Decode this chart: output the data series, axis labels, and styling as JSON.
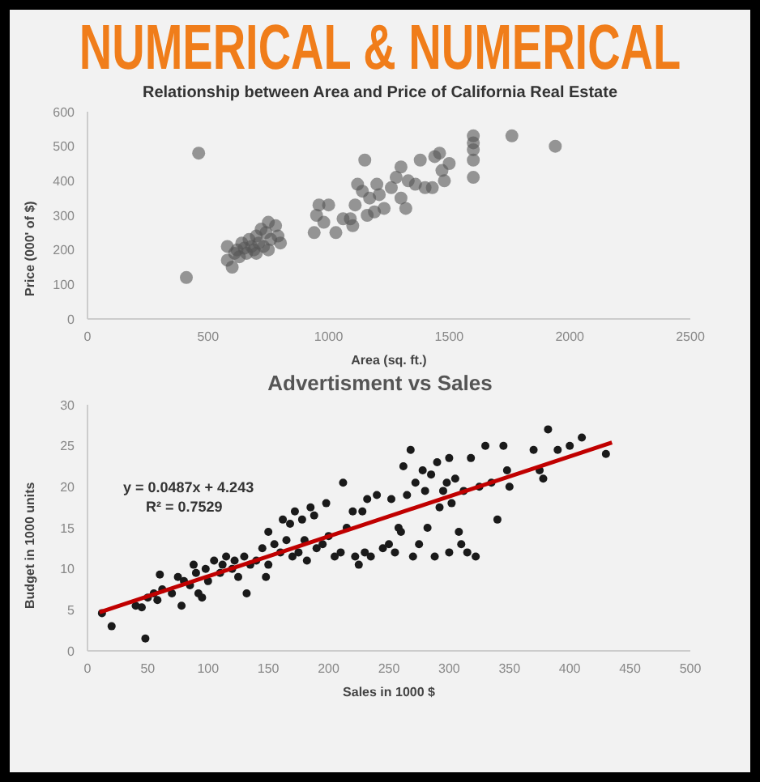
{
  "chart_data": [
    {
      "type": "scatter",
      "title": "NUMERICAL & NUMERICAL",
      "subtitle": "Relationship between Area and Price of California Real Estate",
      "xlabel": "Area (sq. ft.)",
      "ylabel": "Price (000' of $)",
      "marker": "circle",
      "xlim": [
        0,
        2500
      ],
      "xticks": [
        0,
        500,
        1000,
        1500,
        2000,
        2500
      ],
      "ylim": [
        0,
        600
      ],
      "yticks": [
        0,
        100,
        200,
        300,
        400,
        500,
        600
      ],
      "series": [
        {
          "type": "scatter",
          "color": "#555555",
          "x": [
            410,
            461,
            580,
            580,
            600,
            610,
            620,
            630,
            640,
            650,
            660,
            670,
            680,
            690,
            700,
            700,
            710,
            720,
            730,
            740,
            750,
            750,
            760,
            780,
            790,
            800,
            940,
            950,
            960,
            980,
            1000,
            1030,
            1060,
            1090,
            1100,
            1110,
            1120,
            1140,
            1150,
            1160,
            1170,
            1190,
            1200,
            1210,
            1230,
            1260,
            1280,
            1300,
            1300,
            1320,
            1330,
            1360,
            1380,
            1400,
            1430,
            1440,
            1460,
            1470,
            1480,
            1500,
            1600,
            1600,
            1600,
            1600,
            1600,
            1760,
            1940
          ],
          "values": [
            120,
            480,
            210,
            170,
            150,
            190,
            200,
            180,
            220,
            205,
            190,
            230,
            210,
            200,
            240,
            190,
            220,
            260,
            210,
            250,
            280,
            200,
            230,
            270,
            240,
            220,
            250,
            300,
            330,
            280,
            330,
            250,
            290,
            290,
            270,
            330,
            390,
            370,
            460,
            300,
            350,
            310,
            390,
            360,
            320,
            380,
            410,
            440,
            350,
            320,
            400,
            390,
            460,
            380,
            380,
            470,
            480,
            430,
            400,
            450,
            410,
            460,
            490,
            510,
            530,
            530,
            500
          ]
        }
      ]
    },
    {
      "type": "scatter",
      "title": "Advertisment vs Sales",
      "xlabel": "Sales in 1000 $",
      "ylabel": "Budget in 1000 units",
      "marker": "circle",
      "xlim": [
        0,
        500
      ],
      "xticks": [
        0,
        50,
        100,
        150,
        200,
        250,
        300,
        350,
        400,
        450,
        500
      ],
      "ylim": [
        0,
        30
      ],
      "yticks": [
        0,
        5,
        10,
        15,
        20,
        25,
        30
      ],
      "annotations": [
        "y = 0.0487x + 4.243",
        "R² = 0.7529"
      ],
      "series": [
        {
          "type": "scatter",
          "color": "#1a1a1a",
          "x": [
            12,
            20,
            40,
            45,
            48,
            50,
            55,
            58,
            60,
            62,
            70,
            75,
            78,
            80,
            85,
            88,
            90,
            92,
            95,
            98,
            100,
            105,
            110,
            112,
            115,
            120,
            122,
            125,
            130,
            132,
            135,
            140,
            145,
            148,
            150,
            150,
            155,
            160,
            162,
            165,
            168,
            170,
            172,
            175,
            178,
            180,
            182,
            185,
            188,
            190,
            195,
            198,
            200,
            205,
            210,
            212,
            215,
            220,
            222,
            225,
            228,
            230,
            232,
            235,
            240,
            245,
            250,
            252,
            255,
            258,
            260,
            262,
            265,
            268,
            270,
            272,
            275,
            278,
            280,
            282,
            285,
            288,
            290,
            292,
            295,
            298,
            300,
            300,
            302,
            305,
            308,
            310,
            312,
            315,
            318,
            322,
            325,
            330,
            335,
            340,
            345,
            348,
            350,
            370,
            375,
            378,
            382,
            390,
            400,
            410,
            430
          ],
          "values": [
            4.6,
            3,
            5.5,
            5.3,
            1.5,
            6.5,
            7,
            6.2,
            9.3,
            7.5,
            7,
            9,
            5.5,
            8.5,
            8,
            10.5,
            9.5,
            7,
            6.5,
            10,
            8.5,
            11,
            9.5,
            10.5,
            11.5,
            10,
            11,
            9,
            11.5,
            7,
            10.5,
            11,
            12.5,
            9,
            10.5,
            14.5,
            13,
            12,
            16,
            13.5,
            15.5,
            11.5,
            17,
            12,
            16,
            13.5,
            11,
            17.5,
            16.5,
            12.5,
            13,
            18,
            14,
            11.5,
            12,
            20.5,
            15,
            17,
            11.5,
            10.5,
            17,
            12,
            18.5,
            11.5,
            19,
            12.5,
            13,
            18.5,
            12,
            15,
            14.5,
            22.5,
            19,
            24.5,
            11.5,
            20.5,
            13,
            22,
            19.5,
            15,
            21.5,
            11.5,
            23,
            17.5,
            19.5,
            20.5,
            23.5,
            12,
            18,
            21,
            14.5,
            13,
            19.5,
            12,
            23.5,
            11.5,
            20,
            25,
            20.5,
            16,
            25,
            22,
            20,
            24.5,
            22,
            21,
            27,
            24.5,
            25,
            26,
            24
          ]
        },
        {
          "type": "line",
          "color": "#c00000",
          "marker": "none",
          "x": [
            10,
            435
          ],
          "values": [
            4.7,
            25.4
          ]
        }
      ]
    }
  ]
}
